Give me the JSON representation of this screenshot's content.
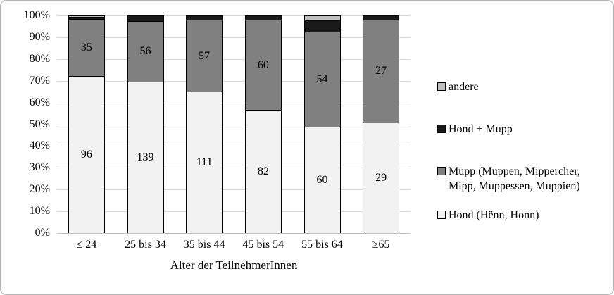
{
  "chart_data": {
    "type": "bar",
    "subtype": "stacked-100-percent",
    "title": "",
    "xlabel": "Alter der TeilnehmerInnen",
    "ylabel": "",
    "ylim": [
      0,
      100
    ],
    "grid": true,
    "legend_position": "right",
    "y_ticks": [
      "100%",
      "90%",
      "80%",
      "70%",
      "60%",
      "50%",
      "40%",
      "30%",
      "20%",
      "10%",
      "0%"
    ],
    "categories": [
      "≤ 24",
      "25 bis 34",
      "35 bis 44",
      "45 bis 54",
      "55 bis 64",
      "≥65"
    ],
    "series": [
      {
        "name": "Hond (Hënn, Honn)",
        "color": "#f2f2f2",
        "labels": [
          96,
          139,
          111,
          82,
          60,
          29
        ],
        "percent": [
          72.2,
          69.5,
          64.9,
          56.6,
          48.8,
          50.9
        ]
      },
      {
        "name": "Mupp (Muppen, Mippercher, Mipp, Muppessen, Muppien)",
        "color": "#808080",
        "labels": [
          35,
          56,
          57,
          60,
          54,
          27
        ],
        "percent": [
          26.3,
          28.0,
          33.3,
          41.4,
          43.9,
          47.3
        ]
      },
      {
        "name": "Hond + Mupp",
        "color": "#1a1a1a",
        "labels": [
          null,
          null,
          null,
          null,
          null,
          null
        ],
        "percent": [
          0.8,
          2.5,
          1.8,
          2.0,
          4.9,
          1.8
        ]
      },
      {
        "name": "andere",
        "color": "#bfbfbf",
        "labels": [
          null,
          null,
          null,
          null,
          null,
          null
        ],
        "percent": [
          0.7,
          0,
          0,
          0,
          2.4,
          0
        ]
      }
    ],
    "legend": [
      {
        "lines": [
          "andere"
        ],
        "color": "#bfbfbf"
      },
      {
        "lines": [
          "Hond + Mupp"
        ],
        "color": "#1a1a1a"
      },
      {
        "lines": [
          "Mupp (Muppen, Mippercher,",
          "Mipp, Muppessen, Muppien)"
        ],
        "color": "#808080"
      },
      {
        "lines": [
          "Hond (Hënn, Honn)"
        ],
        "color": "#f2f2f2"
      }
    ],
    "colors": {
      "gridline": "#d9d9d9",
      "axis_line": "#bfbfbf",
      "bar_border": "#000000",
      "text": "#000000",
      "frame_border": "#b4b4b4"
    }
  }
}
